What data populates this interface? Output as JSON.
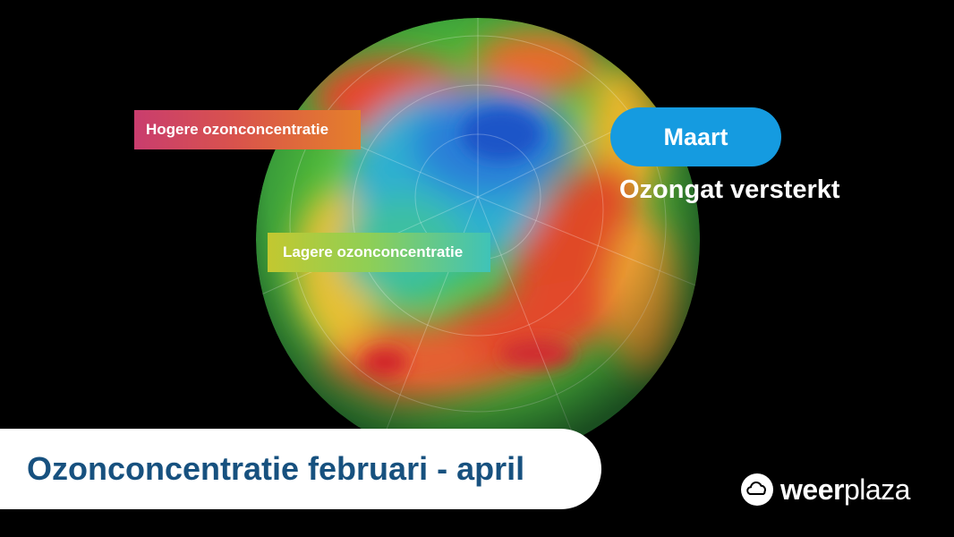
{
  "map": {
    "label_high": "Hogere ozonconcentratie",
    "label_low": "Lagere ozonconcentratie"
  },
  "month_badge": "Maart",
  "subtitle": "Ozongat versterkt",
  "title": "Ozonconcentratie februari - april",
  "brand": {
    "part1": "weer",
    "part2": "plaza",
    "icon": "cloud-icon"
  },
  "colors": {
    "badge": "#159be0",
    "title": "#17517f"
  }
}
